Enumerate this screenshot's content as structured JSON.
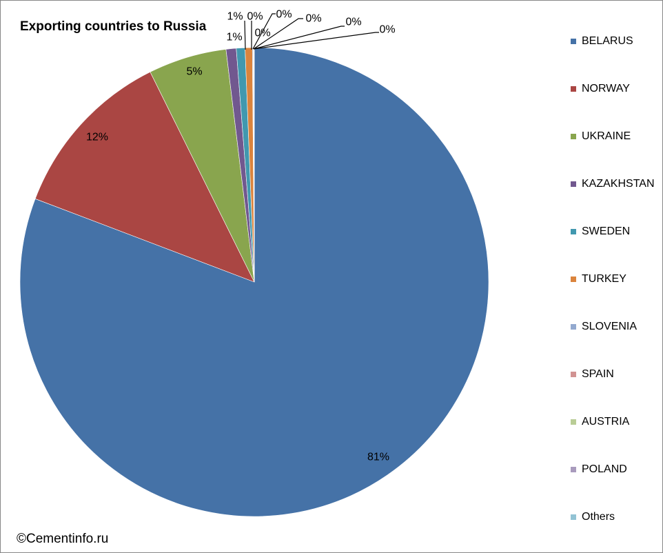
{
  "chart_data": {
    "type": "pie",
    "title": "Exporting countries to Russia",
    "categories": [
      "BELARUS",
      "NORWAY",
      "UKRAINE",
      "KAZAKHSTAN",
      "SWEDEN",
      "TURKEY",
      "SLOVENIA",
      "SPAIN",
      "AUSTRIA",
      "POLAND",
      "Others"
    ],
    "values": [
      80.8,
      11.9,
      5.4,
      0.7,
      0.6,
      0.5,
      0.05,
      0.03,
      0.02,
      0.01,
      0.02
    ],
    "labels": [
      "81%",
      "12%",
      "5%",
      "1%",
      "1%",
      "0%",
      "0%",
      "0%",
      "0%",
      "0%",
      "0%"
    ],
    "colors": [
      "#4572A7",
      "#AA4643",
      "#89A54E",
      "#71588F",
      "#4198AF",
      "#DB843D",
      "#93A9CF",
      "#D19392",
      "#B9CD96",
      "#A99BBD",
      "#92C3D4"
    ],
    "legend_position": "right"
  },
  "footer": {
    "copyright": "©Cementinfo.ru"
  }
}
